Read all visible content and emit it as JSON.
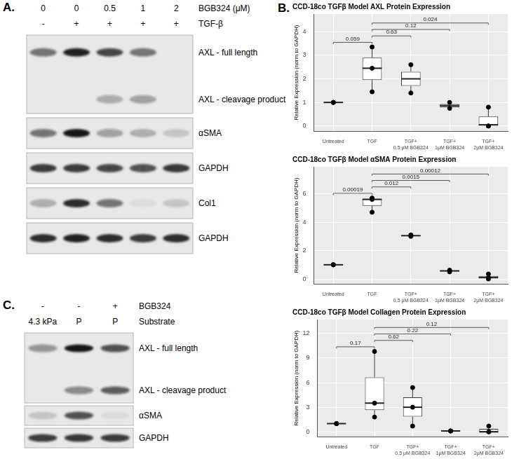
{
  "panel_a": {
    "label": "A.",
    "lane_headers": [
      {
        "label": "BGB324 (μM)",
        "lanes": [
          "0",
          "0",
          "0.5",
          "1",
          "2"
        ]
      },
      {
        "label": "TGF-β",
        "lanes": [
          "-",
          "+",
          "+",
          "+",
          "+"
        ]
      }
    ],
    "blots": [
      {
        "bands": [
          {
            "label": "AXL - full length",
            "intensity": [
              0.55,
              0.95,
              0.75,
              0.55,
              0
            ]
          },
          {
            "label": "AXL - cleavage product",
            "intensity": [
              0,
              0,
              0.3,
              0.35,
              0
            ]
          }
        ]
      },
      {
        "bands": [
          {
            "label": "αSMA",
            "intensity": [
              0.55,
              1.0,
              0.35,
              0.25,
              0.15
            ]
          }
        ]
      },
      {
        "bands": [
          {
            "label": "GAPDH",
            "intensity": [
              0.8,
              0.8,
              0.75,
              0.7,
              0.85
            ]
          }
        ]
      },
      {
        "bands": [
          {
            "label": "Col1",
            "intensity": [
              0.25,
              0.9,
              0.55,
              0.05,
              0.15
            ]
          }
        ]
      },
      {
        "bands": [
          {
            "label": "GAPDH",
            "intensity": [
              0.9,
              0.95,
              0.9,
              0.8,
              0.9
            ]
          }
        ]
      }
    ]
  },
  "panel_b": {
    "label": "B."
  },
  "chart_data": [
    {
      "type": "box",
      "title": "CCD-18co TGFβ Model AXL Protein Expression",
      "y_label": "Relative Expression (norm to GAPDH)",
      "categories": [
        "Untreated",
        "TGF",
        [
          "TGF+",
          "0.5 μM BGB324"
        ],
        [
          "TGF+",
          "1μM BGB324"
        ],
        [
          "TGF+",
          "2μM BGB324"
        ]
      ],
      "boxes": [
        {
          "whisker_low": 1,
          "q1": 1,
          "median": 1,
          "q3": 1,
          "whisker_high": 1,
          "points": [
            1,
            1,
            1
          ]
        },
        {
          "whisker_low": 1.45,
          "q1": 1.95,
          "median": 2.45,
          "q3": 2.9,
          "whisker_high": 3.35,
          "points": [
            3.35,
            2.45,
            1.45
          ]
        },
        {
          "whisker_low": 1.4,
          "q1": 1.7,
          "median": 2.0,
          "q3": 2.3,
          "whisker_high": 2.6,
          "points": [
            2.6,
            1.4
          ]
        },
        {
          "whisker_low": 0.75,
          "q1": 0.8,
          "median": 0.87,
          "q3": 0.93,
          "whisker_high": 1.0,
          "points": [
            1.0,
            0.75
          ]
        },
        {
          "whisker_low": 0,
          "q1": 0,
          "median": 0.05,
          "q3": 0.4,
          "whisker_high": 0.8,
          "points": [
            0.8,
            0,
            0
          ]
        }
      ],
      "comparisons": [
        {
          "pair": [
            0,
            1
          ],
          "p": 0.059
        },
        {
          "pair": [
            1,
            2
          ],
          "p": 0.63
        },
        {
          "pair": [
            1,
            3
          ],
          "p": 0.12
        },
        {
          "pair": [
            1,
            4
          ],
          "p": 0.024
        }
      ],
      "ylim": [
        -0.22,
        4.75
      ],
      "yticks": [
        0,
        1,
        2,
        3,
        4
      ],
      "grid": true
    },
    {
      "type": "box",
      "title": "CCD-18co TGFβ Model αSMA Protein Expression",
      "y_label": "Relative Expression (norm to GAPDH)",
      "categories": [
        "Untreated",
        "TGF",
        [
          "TGF+",
          "0.5 μM BGB324"
        ],
        [
          "TGF+",
          "1μM BGB324"
        ],
        [
          "TGF+",
          "2μM BGB324"
        ]
      ],
      "boxes": [
        {
          "whisker_low": 1,
          "q1": 1,
          "median": 1,
          "q3": 1,
          "whisker_high": 1,
          "points": [
            1,
            1,
            1
          ]
        },
        {
          "whisker_low": 4.7,
          "q1": 5.15,
          "median": 5.6,
          "q3": 5.65,
          "whisker_high": 5.7,
          "points": [
            5.7,
            5.6,
            4.7
          ]
        },
        {
          "whisker_low": 3.0,
          "q1": 3.02,
          "median": 3.05,
          "q3": 3.07,
          "whisker_high": 3.1,
          "points": [
            3.1,
            3.0
          ]
        },
        {
          "whisker_low": 0.5,
          "q1": 0.53,
          "median": 0.57,
          "q3": 0.6,
          "whisker_high": 0.62,
          "points": [
            0.62,
            0.5
          ]
        },
        {
          "whisker_low": 0,
          "q1": 0.05,
          "median": 0.1,
          "q3": 0.22,
          "whisker_high": 0.35,
          "points": [
            0.35,
            0.1,
            0
          ]
        }
      ],
      "comparisons": [
        {
          "pair": [
            0,
            1
          ],
          "p": 0.00019
        },
        {
          "pair": [
            1,
            2
          ],
          "p": 0.012
        },
        {
          "pair": [
            1,
            3
          ],
          "p": 0.0015
        },
        {
          "pair": [
            1,
            4
          ],
          "p": 0.00012
        }
      ],
      "ylim": [
        -0.35,
        7.9
      ],
      "yticks": [
        0,
        2,
        4,
        6
      ],
      "grid": true
    },
    {
      "type": "box",
      "title": "CCD-18co TGFβ Model Collagen Protein Expression",
      "y_label": "Relative Expression (norm to GAPDH)",
      "categories": [
        "Untreated",
        "TGF",
        [
          "TGF+",
          "0.5 μM BGB324"
        ],
        [
          "TGF+",
          "1μM BGB324"
        ],
        [
          "TGF+",
          "2μM BGB324"
        ]
      ],
      "boxes": [
        {
          "whisker_low": 1,
          "q1": 1,
          "median": 1,
          "q3": 1,
          "whisker_high": 1,
          "points": [
            1,
            1,
            1
          ]
        },
        {
          "whisker_low": 1.8,
          "q1": 2.65,
          "median": 3.5,
          "q3": 6.65,
          "whisker_high": 9.8,
          "points": [
            9.8,
            3.5,
            1.8
          ]
        },
        {
          "whisker_low": 0.7,
          "q1": 1.85,
          "median": 3.0,
          "q3": 4.2,
          "whisker_high": 5.4,
          "points": [
            5.4,
            3.0,
            0.7
          ]
        },
        {
          "whisker_low": 0.1,
          "q1": 0.1,
          "median": 0.1,
          "q3": 0.1,
          "whisker_high": 0.1,
          "points": [
            0.1,
            0.1,
            0.1
          ]
        },
        {
          "whisker_low": 0,
          "q1": 0,
          "median": 0,
          "q3": 0.35,
          "whisker_high": 0.7,
          "points": [
            0.7,
            0,
            0
          ]
        }
      ],
      "comparisons": [
        {
          "pair": [
            0,
            1
          ],
          "p": 0.17
        },
        {
          "pair": [
            1,
            2
          ],
          "p": 0.62
        },
        {
          "pair": [
            1,
            3
          ],
          "p": 0.22
        },
        {
          "pair": [
            1,
            4
          ],
          "p": 0.12
        }
      ],
      "ylim": [
        -0.6,
        13.7
      ],
      "yticks": [
        0,
        3,
        6,
        9,
        12
      ],
      "grid": true
    }
  ],
  "panel_c": {
    "label": "C.",
    "lane_headers": [
      {
        "label": "BGB324",
        "lanes": [
          "-",
          "-",
          "+"
        ]
      },
      {
        "label": "Substrate",
        "lanes": [
          "4.3 kPa",
          "P",
          "P"
        ]
      }
    ],
    "blots": [
      {
        "bands": [
          {
            "label": "AXL - full length",
            "intensity": [
              0.4,
              1.0,
              0.7
            ]
          },
          {
            "label": "AXL - cleavage product",
            "intensity": [
              0,
              0.45,
              0.65
            ]
          }
        ]
      },
      {
        "bands": [
          {
            "label": "αSMA",
            "intensity": [
              0.15,
              0.7,
              0.05
            ]
          }
        ]
      },
      {
        "bands": [
          {
            "label": "GAPDH",
            "intensity": [
              0.8,
              0.85,
              0.8
            ]
          }
        ]
      }
    ]
  }
}
